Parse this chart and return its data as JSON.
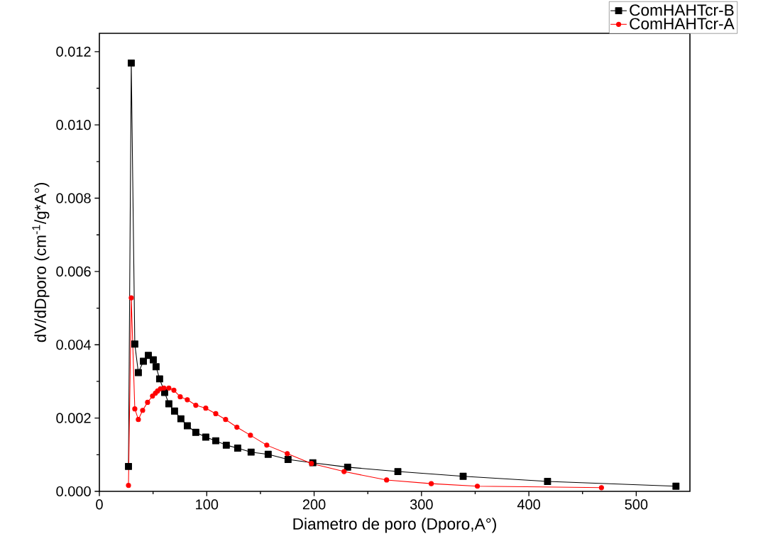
{
  "chart_data": {
    "type": "line",
    "xlabel": "Diametro de poro (Dporo,A°)",
    "ylabel": "dV/dDporo (cm$^{-1}$/g*A°)",
    "xlim": [
      0,
      550
    ],
    "ylim": [
      0,
      0.0125
    ],
    "xticks": [
      0,
      100,
      200,
      300,
      400,
      500
    ],
    "yticks": [
      {
        "value": 0,
        "label": "0.000"
      },
      {
        "value": 0.002,
        "label": "0.002"
      },
      {
        "value": 0.004,
        "label": "0.004"
      },
      {
        "value": 0.006,
        "label": "0.006"
      },
      {
        "value": 0.008,
        "label": "0.008"
      },
      {
        "value": 0.01,
        "label": "0.010"
      },
      {
        "value": 0.012,
        "label": "0.012"
      }
    ],
    "grid": false,
    "legend": "top right",
    "line_style": "solid",
    "series": [
      {
        "name": "ComHAHTcr-B",
        "color": "#000000",
        "marker": "square",
        "x": [
          27.1,
          29.7,
          33.0,
          36.3,
          41.0,
          45.6,
          50.2,
          52.8,
          56.1,
          60.8,
          64.7,
          70.0,
          75.9,
          81.9,
          89.8,
          99.1,
          108.4,
          118.2,
          128.8,
          141.3,
          157.2,
          175.7,
          198.8,
          231.2,
          278,
          338.8,
          417.4,
          537
        ],
        "values": [
          0.00068,
          0.01169,
          0.00402,
          0.00324,
          0.00355,
          0.00371,
          0.00359,
          0.0034,
          0.00307,
          0.0027,
          0.00239,
          0.00219,
          0.00198,
          0.00179,
          0.00161,
          0.00148,
          0.00138,
          0.00126,
          0.00118,
          0.00107,
          0.00101,
          0.00087,
          0.00078,
          0.00066,
          0.00054,
          0.00041,
          0.00027,
          0.00014
        ]
      },
      {
        "name": "ComHAHTcr-A",
        "color": "#ff0000",
        "marker": "circle",
        "x": [
          27.1,
          29.7,
          33.0,
          36.3,
          40.3,
          44.9,
          49.5,
          52.2,
          54.2,
          56.8,
          60.1,
          64.7,
          69.4,
          75.3,
          81.9,
          89.8,
          99.1,
          108.4,
          117.6,
          128.1,
          140.7,
          155.9,
          175.0,
          197.5,
          227.9,
          267.5,
          309.1,
          352,
          467.6
        ],
        "values": [
          0.00016,
          0.00528,
          0.00225,
          0.00196,
          0.00221,
          0.00243,
          0.0026,
          0.00268,
          0.00274,
          0.0028,
          0.00282,
          0.00282,
          0.00276,
          0.00258,
          0.0025,
          0.00235,
          0.00227,
          0.00212,
          0.00196,
          0.00175,
          0.00153,
          0.00126,
          0.00103,
          0.00076,
          0.00054,
          0.00031,
          0.00021,
          0.00014,
          0.0001
        ]
      }
    ]
  }
}
